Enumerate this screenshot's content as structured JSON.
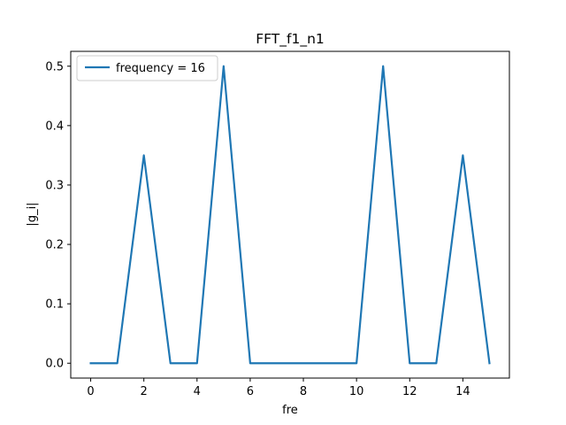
{
  "chart_data": {
    "type": "line",
    "title": "FFT_f1_n1",
    "xlabel": "fre",
    "ylabel": "|g_i|",
    "x": [
      0,
      1,
      2,
      3,
      4,
      5,
      6,
      7,
      8,
      9,
      10,
      11,
      12,
      13,
      14,
      15
    ],
    "series": [
      {
        "name": "frequency = 16",
        "color": "#1f77b4",
        "values": [
          0,
          0,
          0.35,
          0,
          0,
          0.5,
          0,
          0,
          0,
          0,
          0,
          0.5,
          0,
          0,
          0.35,
          0
        ]
      }
    ],
    "xlim": [
      -0.75,
      15.75
    ],
    "ylim": [
      -0.025,
      0.525
    ],
    "xticks": [
      0,
      2,
      4,
      6,
      8,
      10,
      12,
      14
    ],
    "xtick_labels": [
      "0",
      "2",
      "4",
      "6",
      "8",
      "10",
      "12",
      "14"
    ],
    "yticks": [
      0.0,
      0.1,
      0.2,
      0.3,
      0.4,
      0.5
    ],
    "ytick_labels": [
      "0.0",
      "0.1",
      "0.2",
      "0.3",
      "0.4",
      "0.5"
    ],
    "grid": false,
    "legend_position": "upper-left"
  }
}
